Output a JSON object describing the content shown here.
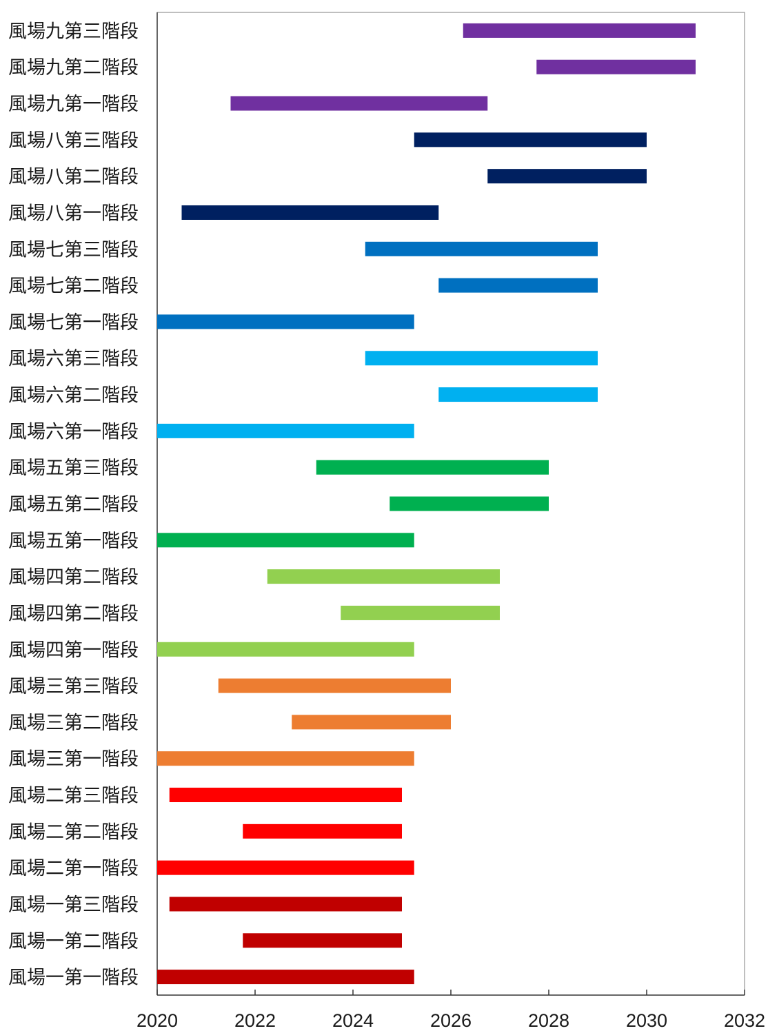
{
  "chart_data": {
    "type": "bar",
    "orientation": "horizontal-range",
    "title": "",
    "xlabel": "",
    "ylabel": "",
    "xlim": [
      2020,
      2032
    ],
    "x_ticks": [
      "2020",
      "2022",
      "2024",
      "2026",
      "2028",
      "2030",
      "2032"
    ],
    "grid": false,
    "legend": "none",
    "categories": [
      "風場九第三階段",
      "風場九第二階段",
      "風場九第一階段",
      "風場八第三階段",
      "風場八第二階段",
      "風場八第一階段",
      "風場七第三階段",
      "風場七第二階段",
      "風場七第一階段",
      "風場六第三階段",
      "風場六第二階段",
      "風場六第一階段",
      "風場五第三階段",
      "風場五第二階段",
      "風場五第一階段",
      "風場四第二階段",
      "風場四第二階段",
      "風場四第一階段",
      "風場三第三階段",
      "風場三第二階段",
      "風場三第一階段",
      "風場二第三階段",
      "風場二第二階段",
      "風場二第一階段",
      "風場一第三階段",
      "風場一第二階段",
      "風場一第一階段"
    ],
    "bars": [
      {
        "start": 2026.25,
        "end": 2031.0,
        "color": "#7030a0"
      },
      {
        "start": 2027.75,
        "end": 2031.0,
        "color": "#7030a0"
      },
      {
        "start": 2021.5,
        "end": 2026.75,
        "color": "#7030a0"
      },
      {
        "start": 2025.25,
        "end": 2030.0,
        "color": "#002060"
      },
      {
        "start": 2026.75,
        "end": 2030.0,
        "color": "#002060"
      },
      {
        "start": 2020.5,
        "end": 2025.75,
        "color": "#002060"
      },
      {
        "start": 2024.25,
        "end": 2029.0,
        "color": "#0070c0"
      },
      {
        "start": 2025.75,
        "end": 2029.0,
        "color": "#0070c0"
      },
      {
        "start": 2020.0,
        "end": 2025.25,
        "color": "#0070c0"
      },
      {
        "start": 2024.25,
        "end": 2029.0,
        "color": "#00b0f0"
      },
      {
        "start": 2025.75,
        "end": 2029.0,
        "color": "#00b0f0"
      },
      {
        "start": 2020.0,
        "end": 2025.25,
        "color": "#00b0f0"
      },
      {
        "start": 2023.25,
        "end": 2028.0,
        "color": "#00b050"
      },
      {
        "start": 2024.75,
        "end": 2028.0,
        "color": "#00b050"
      },
      {
        "start": 2020.0,
        "end": 2025.25,
        "color": "#00b050"
      },
      {
        "start": 2022.25,
        "end": 2027.0,
        "color": "#92d050"
      },
      {
        "start": 2023.75,
        "end": 2027.0,
        "color": "#92d050"
      },
      {
        "start": 2020.0,
        "end": 2025.25,
        "color": "#92d050"
      },
      {
        "start": 2021.25,
        "end": 2026.0,
        "color": "#ed7d31"
      },
      {
        "start": 2022.75,
        "end": 2026.0,
        "color": "#ed7d31"
      },
      {
        "start": 2020.0,
        "end": 2025.25,
        "color": "#ed7d31"
      },
      {
        "start": 2020.25,
        "end": 2025.0,
        "color": "#ff0000"
      },
      {
        "start": 2021.75,
        "end": 2025.0,
        "color": "#ff0000"
      },
      {
        "start": 2020.0,
        "end": 2025.25,
        "color": "#ff0000"
      },
      {
        "start": 2020.25,
        "end": 2025.0,
        "color": "#c00000"
      },
      {
        "start": 2021.75,
        "end": 2025.0,
        "color": "#c00000"
      },
      {
        "start": 2020.0,
        "end": 2025.25,
        "color": "#c00000"
      }
    ]
  }
}
